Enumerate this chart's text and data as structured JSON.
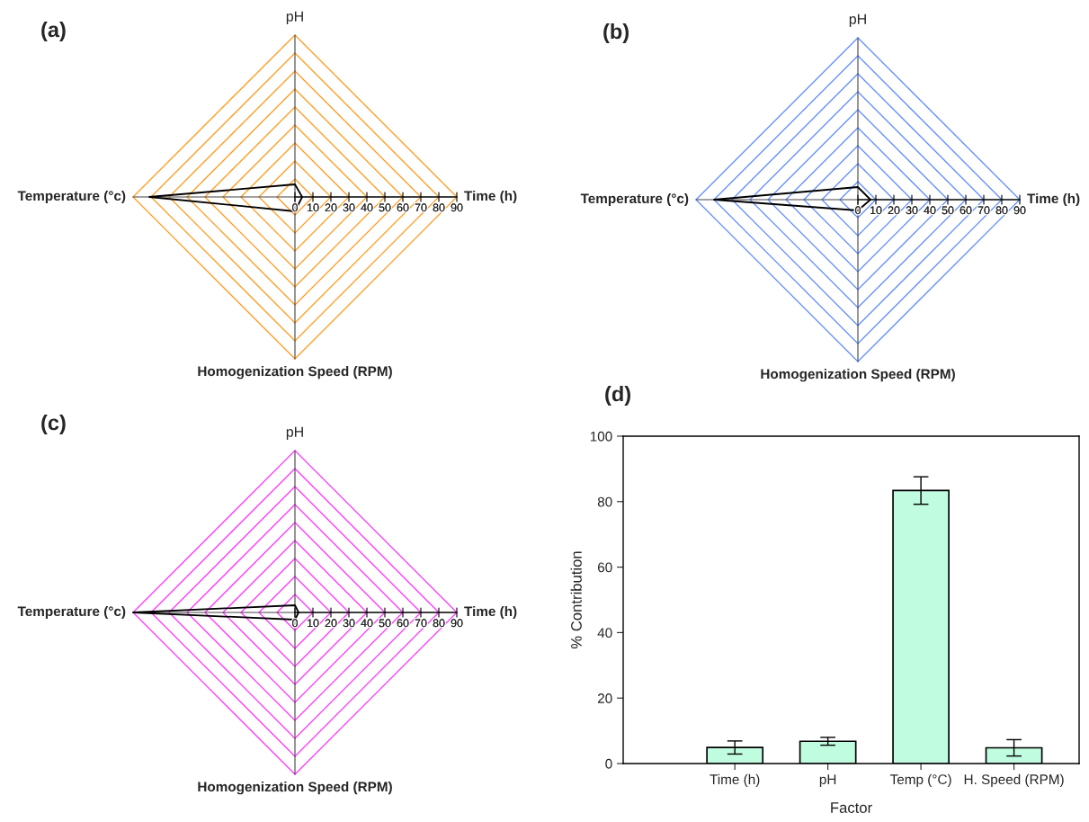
{
  "chart_data": [
    {
      "type": "radar",
      "title": "(a)",
      "categories": [
        "pH",
        "Time (h)",
        "Homogenization Speed (RPM)",
        "Temperature (°c)"
      ],
      "series": [
        {
          "color": "#000000",
          "values": [
            7,
            4,
            8,
            81
          ]
        }
      ],
      "ylim": [
        0,
        90
      ],
      "yticks": [
        0,
        10,
        20,
        30,
        40,
        50,
        60,
        70,
        80,
        90
      ],
      "grid": true
    },
    {
      "type": "radar",
      "title": "(b)",
      "categories": [
        "pH",
        "Time (h)",
        "Homogenization Speed (RPM)",
        "Temperature (°c)"
      ],
      "series": [
        {
          "color": "#000000",
          "values": [
            7,
            7,
            6,
            80
          ]
        }
      ],
      "ylim": [
        0,
        90
      ],
      "yticks": [
        0,
        10,
        20,
        30,
        40,
        50,
        60,
        70,
        80,
        90
      ],
      "grid": true
    },
    {
      "type": "radar",
      "title": "(c)",
      "categories": [
        "pH",
        "Time (h)",
        "Homogenization Speed (RPM)",
        "Temperature (°c)"
      ],
      "series": [
        {
          "color": "#000000",
          "values": [
            4,
            2,
            4,
            90
          ]
        }
      ],
      "ylim": [
        0,
        90
      ],
      "yticks": [
        0,
        10,
        20,
        30,
        40,
        50,
        60,
        70,
        80,
        90
      ],
      "grid": true
    },
    {
      "type": "bar",
      "title": "(d)",
      "xlabel": "Factor",
      "ylabel": "% Contribution",
      "categories": [
        "Time (h)",
        "pH",
        "Temp (°C)",
        "H. Speed (RPM)"
      ],
      "values": [
        4.9,
        6.8,
        83.4,
        4.8
      ],
      "errors": [
        2.0,
        1.2,
        4.2,
        2.5
      ],
      "color": "#c0fce0",
      "ylim": [
        0,
        100
      ],
      "yticks": [
        0,
        20,
        40,
        60,
        80,
        100
      ],
      "grid": false
    }
  ]
}
